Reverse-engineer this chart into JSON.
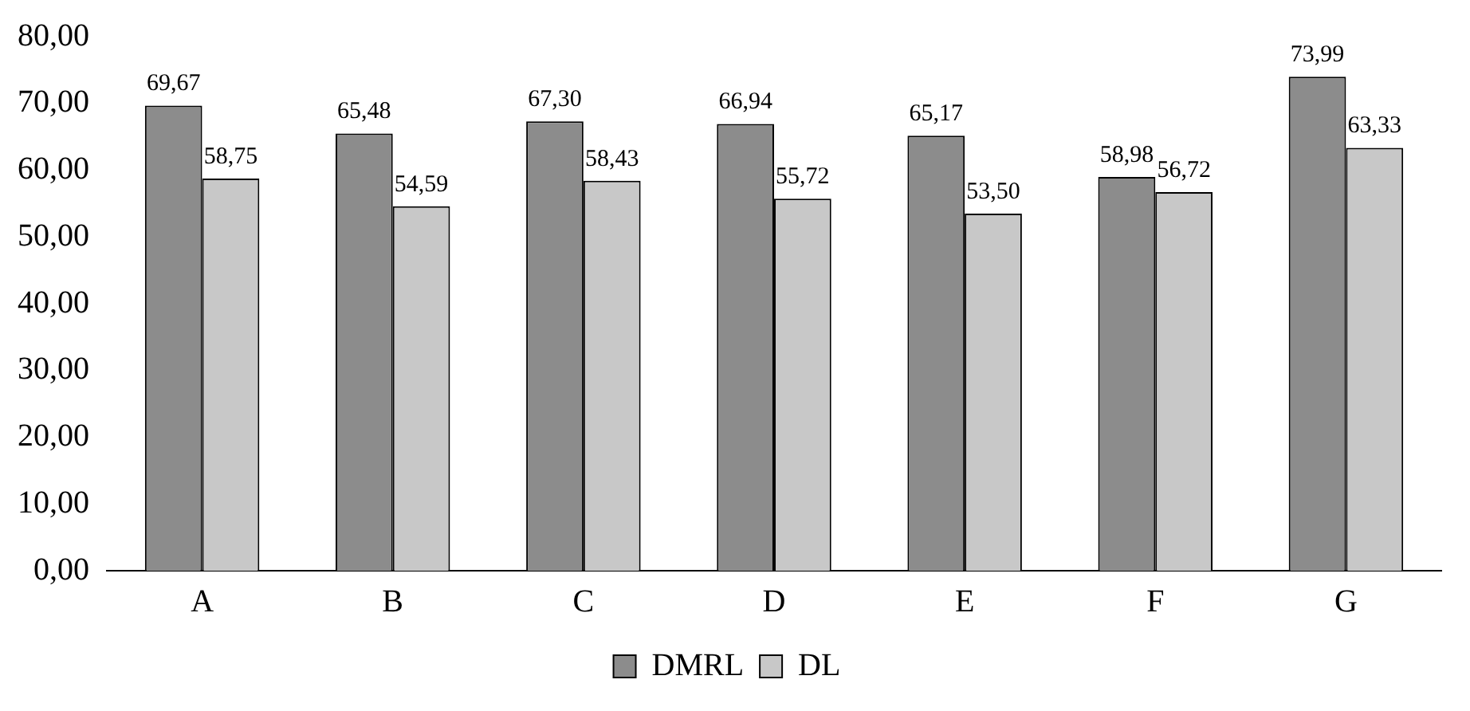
{
  "chart_data": {
    "type": "bar",
    "categories": [
      "A",
      "B",
      "C",
      "D",
      "E",
      "F",
      "G"
    ],
    "series": [
      {
        "name": "DMRL",
        "color": "#8c8c8c",
        "values": [
          69.67,
          65.48,
          67.3,
          66.94,
          65.17,
          58.98,
          73.99
        ],
        "value_labels": [
          "69,67",
          "65,48",
          "67,30",
          "66,94",
          "65,17",
          "58,98",
          "73,99"
        ]
      },
      {
        "name": "DL",
        "color": "#c8c8c8",
        "values": [
          58.75,
          54.59,
          58.43,
          55.72,
          53.5,
          56.72,
          63.33
        ],
        "value_labels": [
          "58,75",
          "54,59",
          "58,43",
          "55,72",
          "53,50",
          "56,72",
          "63,33"
        ]
      }
    ],
    "ylim": [
      0,
      80
    ],
    "yticks": [
      {
        "value": 0,
        "label": "0,00"
      },
      {
        "value": 10,
        "label": "10,00"
      },
      {
        "value": 20,
        "label": "20,00"
      },
      {
        "value": 30,
        "label": "30,00"
      },
      {
        "value": 40,
        "label": "40,00"
      },
      {
        "value": 50,
        "label": "50,00"
      },
      {
        "value": 60,
        "label": "60,00"
      },
      {
        "value": 70,
        "label": "70,00"
      },
      {
        "value": 80,
        "label": "80,00"
      }
    ],
    "grid": false,
    "legend": "bottom"
  }
}
